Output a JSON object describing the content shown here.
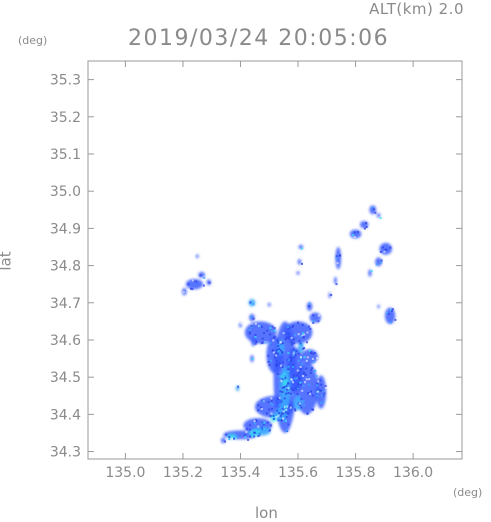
{
  "header": {
    "altitude": "ALT(km)  2.0",
    "timestamp": "2019/03/24  20:05:06"
  },
  "axes": {
    "x_label": "lon",
    "y_label": "lat",
    "x_unit": "(deg)",
    "y_unit": "(deg)",
    "x_range": [
      134.87,
      136.17
    ],
    "y_range": [
      34.28,
      35.35
    ],
    "x_ticks": [
      135.0,
      135.2,
      135.4,
      135.6,
      135.8,
      136.0
    ],
    "y_ticks": [
      34.3,
      34.4,
      34.5,
      34.6,
      34.7,
      34.8,
      34.9,
      35.0,
      35.1,
      35.2,
      35.3
    ],
    "x_tick_labels": [
      "135.0",
      "135.2",
      "135.4",
      "135.6",
      "135.8",
      "136.0"
    ],
    "y_tick_labels": [
      "34.3",
      "34.4",
      "34.5",
      "34.6",
      "34.7",
      "34.8",
      "34.9",
      "35.0",
      "35.1",
      "35.2",
      "35.3"
    ]
  },
  "colors": {
    "frame": "#9a9a9a",
    "light_rain": "#3a5cff",
    "moderate_rain": "#3fa9ff",
    "heavy_rain": "#38e0f0"
  },
  "echo_cells": [
    {
      "lon": 135.555,
      "lat": 34.5,
      "rlon": 0.04,
      "rlat": 0.15,
      "level": "light"
    },
    {
      "lon": 135.47,
      "lat": 34.62,
      "rlon": 0.055,
      "rlat": 0.03,
      "level": "light"
    },
    {
      "lon": 135.6,
      "lat": 34.62,
      "rlon": 0.05,
      "rlat": 0.03,
      "level": "light"
    },
    {
      "lon": 135.52,
      "lat": 34.56,
      "rlon": 0.03,
      "rlat": 0.05,
      "level": "light"
    },
    {
      "lon": 135.63,
      "lat": 34.47,
      "rlon": 0.04,
      "rlat": 0.07,
      "level": "light"
    },
    {
      "lon": 135.59,
      "lat": 34.52,
      "rlon": 0.03,
      "rlat": 0.06,
      "level": "light"
    },
    {
      "lon": 135.52,
      "lat": 34.42,
      "rlon": 0.07,
      "rlat": 0.03,
      "level": "light"
    },
    {
      "lon": 135.46,
      "lat": 34.37,
      "rlon": 0.05,
      "rlat": 0.02,
      "level": "light"
    },
    {
      "lon": 135.4,
      "lat": 34.345,
      "rlon": 0.06,
      "rlat": 0.012,
      "level": "light"
    },
    {
      "lon": 135.68,
      "lat": 34.46,
      "rlon": 0.018,
      "rlat": 0.045,
      "level": "light"
    },
    {
      "lon": 135.66,
      "lat": 34.66,
      "rlon": 0.02,
      "rlat": 0.014,
      "level": "light"
    },
    {
      "lon": 135.64,
      "lat": 34.555,
      "rlon": 0.03,
      "rlat": 0.02,
      "level": "light"
    },
    {
      "lon": 135.44,
      "lat": 34.66,
      "rlon": 0.01,
      "rlat": 0.01,
      "level": "light"
    },
    {
      "lon": 135.445,
      "lat": 34.595,
      "rlon": 0.008,
      "rlat": 0.012,
      "level": "light"
    },
    {
      "lon": 135.44,
      "lat": 34.55,
      "rlon": 0.006,
      "rlat": 0.01,
      "level": "light"
    },
    {
      "lon": 135.555,
      "lat": 34.47,
      "rlon": 0.018,
      "rlat": 0.06,
      "level": "moderate"
    },
    {
      "lon": 135.54,
      "lat": 34.4,
      "rlon": 0.02,
      "rlat": 0.02,
      "level": "moderate"
    },
    {
      "lon": 135.6,
      "lat": 34.43,
      "rlon": 0.015,
      "rlat": 0.02,
      "level": "moderate"
    },
    {
      "lon": 135.475,
      "lat": 34.355,
      "rlon": 0.03,
      "rlat": 0.012,
      "level": "moderate"
    },
    {
      "lon": 135.54,
      "lat": 34.58,
      "rlon": 0.012,
      "rlat": 0.02,
      "level": "moderate"
    },
    {
      "lon": 135.61,
      "lat": 34.58,
      "rlon": 0.01,
      "rlat": 0.015,
      "level": "moderate"
    },
    {
      "lon": 135.45,
      "lat": 34.35,
      "rlon": 0.02,
      "rlat": 0.008,
      "level": "heavy"
    },
    {
      "lon": 135.37,
      "lat": 34.34,
      "rlon": 0.015,
      "rlat": 0.007,
      "level": "heavy"
    },
    {
      "lon": 135.555,
      "lat": 34.49,
      "rlon": 0.008,
      "rlat": 0.02,
      "level": "heavy"
    },
    {
      "lon": 135.515,
      "lat": 34.39,
      "rlon": 0.01,
      "rlat": 0.01,
      "level": "heavy"
    },
    {
      "lon": 135.24,
      "lat": 34.75,
      "rlon": 0.03,
      "rlat": 0.014,
      "level": "light"
    },
    {
      "lon": 135.265,
      "lat": 34.775,
      "rlon": 0.012,
      "rlat": 0.008,
      "level": "light"
    },
    {
      "lon": 135.25,
      "lat": 34.825,
      "rlon": 0.005,
      "rlat": 0.005,
      "level": "light"
    },
    {
      "lon": 135.205,
      "lat": 34.73,
      "rlon": 0.008,
      "rlat": 0.01,
      "level": "light"
    },
    {
      "lon": 135.29,
      "lat": 34.755,
      "rlon": 0.008,
      "rlat": 0.008,
      "level": "light"
    },
    {
      "lon": 135.44,
      "lat": 34.7,
      "rlon": 0.012,
      "rlat": 0.01,
      "level": "moderate"
    },
    {
      "lon": 135.61,
      "lat": 34.85,
      "rlon": 0.008,
      "rlat": 0.006,
      "level": "light"
    },
    {
      "lon": 135.605,
      "lat": 34.81,
      "rlon": 0.006,
      "rlat": 0.008,
      "level": "light"
    },
    {
      "lon": 135.6,
      "lat": 34.78,
      "rlon": 0.005,
      "rlat": 0.005,
      "level": "light"
    },
    {
      "lon": 135.74,
      "lat": 34.82,
      "rlon": 0.01,
      "rlat": 0.03,
      "level": "light"
    },
    {
      "lon": 135.73,
      "lat": 34.76,
      "rlon": 0.005,
      "rlat": 0.01,
      "level": "light"
    },
    {
      "lon": 135.71,
      "lat": 34.72,
      "rlon": 0.004,
      "rlat": 0.008,
      "level": "light"
    },
    {
      "lon": 135.8,
      "lat": 34.885,
      "rlon": 0.02,
      "rlat": 0.012,
      "level": "light"
    },
    {
      "lon": 135.83,
      "lat": 34.91,
      "rlon": 0.015,
      "rlat": 0.01,
      "level": "light"
    },
    {
      "lon": 135.86,
      "lat": 34.95,
      "rlon": 0.012,
      "rlat": 0.012,
      "level": "light"
    },
    {
      "lon": 135.88,
      "lat": 34.935,
      "rlon": 0.006,
      "rlat": 0.006,
      "level": "light"
    },
    {
      "lon": 135.905,
      "lat": 34.845,
      "rlon": 0.022,
      "rlat": 0.016,
      "level": "light"
    },
    {
      "lon": 135.88,
      "lat": 34.81,
      "rlon": 0.012,
      "rlat": 0.012,
      "level": "light"
    },
    {
      "lon": 135.85,
      "lat": 34.78,
      "rlon": 0.006,
      "rlat": 0.01,
      "level": "light"
    },
    {
      "lon": 135.92,
      "lat": 34.665,
      "rlon": 0.018,
      "rlat": 0.022,
      "level": "light"
    },
    {
      "lon": 135.88,
      "lat": 34.69,
      "rlon": 0.004,
      "rlat": 0.005,
      "level": "light"
    },
    {
      "lon": 135.64,
      "lat": 34.69,
      "rlon": 0.01,
      "rlat": 0.012,
      "level": "light"
    },
    {
      "lon": 135.5,
      "lat": 34.695,
      "rlon": 0.005,
      "rlat": 0.005,
      "level": "light"
    },
    {
      "lon": 135.4,
      "lat": 34.64,
      "rlon": 0.005,
      "rlat": 0.007,
      "level": "light"
    },
    {
      "lon": 135.39,
      "lat": 34.47,
      "rlon": 0.006,
      "rlat": 0.008,
      "level": "moderate"
    },
    {
      "lon": 135.34,
      "lat": 34.33,
      "rlon": 0.008,
      "rlat": 0.008,
      "level": "light"
    }
  ]
}
